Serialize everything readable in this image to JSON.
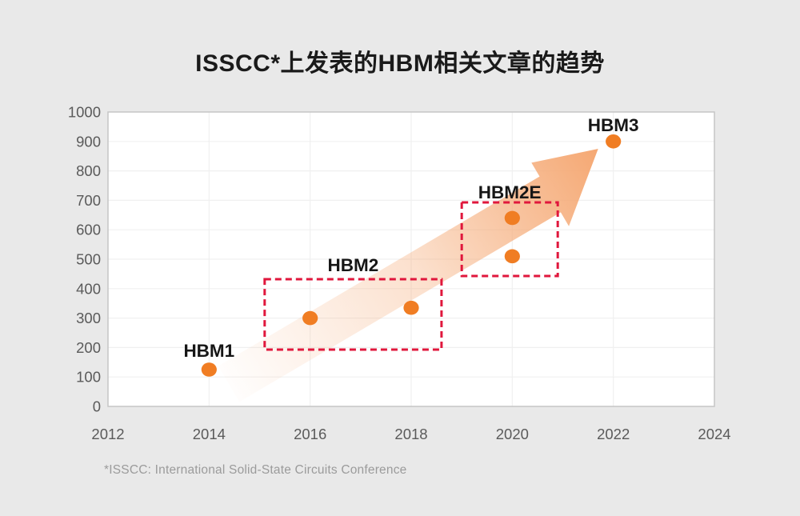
{
  "chart_data": {
    "type": "scatter",
    "title": "ISSCC*上发表的HBM相关文章的趋势",
    "footnote": "*ISSCC: International Solid-State Circuits Conference",
    "xlabel": "",
    "ylabel": "",
    "xlim": [
      2012,
      2024
    ],
    "ylim": [
      0,
      1000
    ],
    "x_ticks": [
      2012,
      2014,
      2016,
      2018,
      2020,
      2022,
      2024
    ],
    "y_ticks": [
      0,
      100,
      200,
      300,
      400,
      500,
      600,
      700,
      800,
      900,
      1000
    ],
    "grid": true,
    "legend": "none",
    "points": [
      {
        "group": "HBM1",
        "x": 2014,
        "y": 125
      },
      {
        "group": "HBM2",
        "x": 2016,
        "y": 300
      },
      {
        "group": "HBM2",
        "x": 2018,
        "y": 335
      },
      {
        "group": "HBM2E",
        "x": 2020,
        "y": 510
      },
      {
        "group": "HBM2E",
        "x": 2020,
        "y": 640
      },
      {
        "group": "HBM3",
        "x": 2022,
        "y": 900
      }
    ],
    "point_labels": [
      {
        "text": "HBM1",
        "x": 2014.0,
        "y": 190
      },
      {
        "text": "HBM2",
        "x": 2016.85,
        "y": 481
      },
      {
        "text": "HBM2E",
        "x": 2019.95,
        "y": 728
      },
      {
        "text": "HBM3",
        "x": 2022.0,
        "y": 956
      }
    ],
    "group_boxes": [
      {
        "label": "HBM2",
        "x0": 2015.1,
        "x1": 2018.6,
        "y0": 193,
        "y1": 432
      },
      {
        "label": "HBM2E",
        "x0": 2019.0,
        "x1": 2020.9,
        "y0": 443,
        "y1": 693
      }
    ],
    "trend_arrow": {
      "tail": {
        "x": 2014.39,
        "y": 76
      },
      "head_base": {
        "x": 2020.75,
        "y": 720
      },
      "tip": {
        "x": 2021.7,
        "y": 875
      }
    },
    "colors": {
      "page_bg": "#E9E9E9",
      "plot_bg": "#FFFFFF",
      "plot_border": "#C6C6C6",
      "grid": "#F0F0F0",
      "point": "#F07D23",
      "arrow": "#F5A873",
      "box_border": "#E0173C",
      "tick_text": "#5A5A5A",
      "label_text": "#161616",
      "title_text": "#1A1A1A",
      "footnote_text": "#9B9B9B"
    }
  }
}
